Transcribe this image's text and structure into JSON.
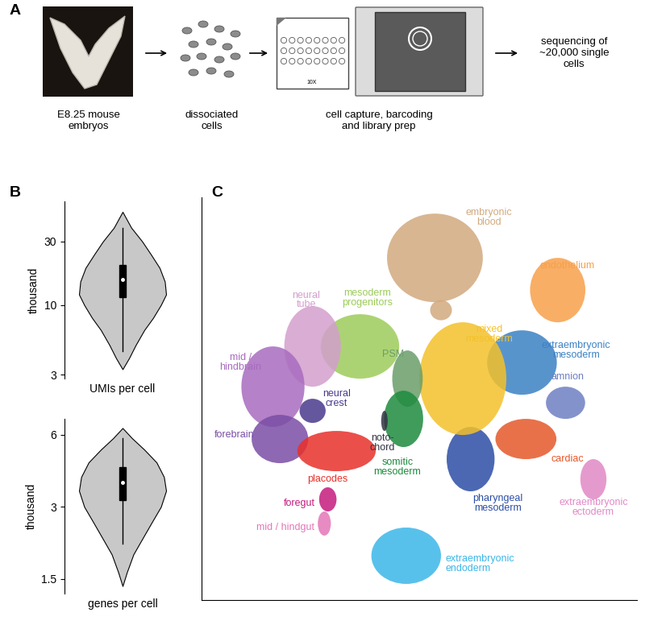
{
  "panel_labels": [
    "A",
    "B",
    "C"
  ],
  "workflow": {
    "steps": [
      "E8.25 mouse\nembryos",
      "dissociated\ncells",
      "cell capture, barcoding\nand library prep",
      "sequencing of\n~20,000 single\ncells"
    ],
    "chip_label": "10X"
  },
  "chart_data": [
    {
      "type": "violin",
      "x_label": "UMIs per cell",
      "y_label": "thousand",
      "log": "y",
      "ylim": [
        2.8,
        60
      ],
      "yticks": [
        3,
        10,
        30
      ],
      "tick_labels": "y",
      "color": "#c8c8c8",
      "y": [
        3.3,
        4,
        5,
        6.5,
        8,
        10,
        12,
        15,
        19,
        24,
        30,
        38,
        50
      ],
      "density": [
        0,
        0.15,
        0.3,
        0.5,
        0.7,
        0.88,
        1.0,
        0.97,
        0.85,
        0.65,
        0.45,
        0.2,
        0
      ],
      "whisker": [
        4.5,
        38
      ],
      "box": [
        11.5,
        20
      ],
      "median": 15.5
    },
    {
      "type": "violin",
      "x_label": "genes per cell",
      "y_label": "thousand",
      "log": "y",
      "ylim": [
        1.3,
        7
      ],
      "yticks": [
        1.5,
        3,
        6
      ],
      "tick_labels": "y",
      "color": "#c8c8c8",
      "y": [
        1.4,
        1.6,
        1.9,
        2.2,
        2.6,
        3.0,
        3.5,
        4.0,
        4.6,
        5.2,
        5.8,
        6.4
      ],
      "density": [
        0,
        0.1,
        0.25,
        0.45,
        0.68,
        0.88,
        1.0,
        0.95,
        0.78,
        0.5,
        0.22,
        0
      ],
      "whisker": [
        2.1,
        5.8
      ],
      "box": [
        3.2,
        4.4
      ],
      "median": 3.8
    },
    {
      "type": "scatter",
      "tick_labels": false,
      "xlim": [
        0,
        100
      ],
      "ylim": [
        0,
        100
      ],
      "xticks": [],
      "yticks": [],
      "clusters": [
        {
          "name": "embryonic\nblood",
          "color": "#d2aa7e",
          "blobs": [
            {
              "center": [
                53.6,
                85
              ],
              "spread": [
                22,
                22
              ]
            },
            {
              "center": [
                55,
                72
              ],
              "spread": [
                5,
                5
              ]
            }
          ]
        },
        {
          "name": "endothelium",
          "color": "#f7a04a",
          "blobs": [
            {
              "center": [
                81.8,
                77
              ],
              "spread": [
                12.7,
                16
              ]
            }
          ]
        },
        {
          "name": "extraembryonic\nmesoderm",
          "color": "#3b82c4",
          "blobs": [
            {
              "center": [
                73.6,
                59
              ],
              "spread": [
                16,
                16
              ]
            }
          ]
        },
        {
          "name": "amnion",
          "color": "#6f7fc4",
          "blobs": [
            {
              "center": [
                83.6,
                49
              ],
              "spread": [
                9,
                8
              ]
            }
          ]
        },
        {
          "name": "cardiac",
          "color": "#e4582a",
          "blobs": [
            {
              "center": [
                74.5,
                40
              ],
              "spread": [
                14,
                10
              ]
            }
          ]
        },
        {
          "name": "extraembryonic\nectoderm",
          "color": "#e189c6",
          "blobs": [
            {
              "center": [
                90,
                30
              ],
              "spread": [
                6,
                10
              ]
            }
          ]
        },
        {
          "name": "pharyngeal\nmesoderm",
          "color": "#2c4ea6",
          "blobs": [
            {
              "center": [
                61.8,
                35
              ],
              "spread": [
                11,
                16
              ]
            }
          ]
        },
        {
          "name": "mixed\nmesoderm",
          "color": "#f4c12a",
          "blobs": [
            {
              "center": [
                60,
                55
              ],
              "spread": [
                20,
                28
              ]
            }
          ]
        },
        {
          "name": "PSM",
          "color": "#6a9e6a",
          "blobs": [
            {
              "center": [
                47.3,
                55
              ],
              "spread": [
                7,
                14
              ]
            }
          ]
        },
        {
          "name": "somitic\nmesoderm",
          "color": "#1e8b3e",
          "blobs": [
            {
              "center": [
                46.4,
                45
              ],
              "spread": [
                9,
                14
              ]
            }
          ]
        },
        {
          "name": "mesoderm\nprogenitors",
          "color": "#9ccc5a",
          "blobs": [
            {
              "center": [
                36.4,
                63
              ],
              "spread": [
                18,
                16
              ]
            }
          ]
        },
        {
          "name": "neural\ntube",
          "color": "#d39fcd",
          "blobs": [
            {
              "center": [
                25.5,
                63
              ],
              "spread": [
                13,
                20
              ]
            }
          ]
        },
        {
          "name": "mid /\nhindbrain",
          "color": "#a86bbf",
          "blobs": [
            {
              "center": [
                16.4,
                53
              ],
              "spread": [
                14.5,
                20
              ]
            }
          ]
        },
        {
          "name": "forebrain",
          "color": "#7a4ea6",
          "blobs": [
            {
              "center": [
                18,
                40
              ],
              "spread": [
                13,
                12
              ]
            }
          ]
        },
        {
          "name": "neural\ncrest",
          "color": "#4a3a8c",
          "blobs": [
            {
              "center": [
                25.5,
                47
              ],
              "spread": [
                6,
                6
              ]
            }
          ]
        },
        {
          "name": "placodes",
          "color": "#e8302a",
          "blobs": [
            {
              "center": [
                31,
                37
              ],
              "spread": [
                18,
                10
              ]
            }
          ]
        },
        {
          "name": "noto-\nchord",
          "color": "#333344",
          "blobs": [
            {
              "center": [
                42,
                44.5
              ],
              "spread": [
                1.5,
                5
              ]
            }
          ]
        },
        {
          "name": "foregut",
          "color": "#c51b7d",
          "blobs": [
            {
              "center": [
                29,
                25
              ],
              "spread": [
                4,
                6
              ]
            }
          ]
        },
        {
          "name": "mid / hindgut",
          "color": "#e377b8",
          "blobs": [
            {
              "center": [
                28.2,
                19
              ],
              "spread": [
                3,
                6
              ]
            }
          ]
        },
        {
          "name": "extraembryonic\nendoderm",
          "color": "#3bb7e8",
          "blobs": [
            {
              "center": [
                47,
                11
              ],
              "spread": [
                16,
                14
              ]
            }
          ]
        }
      ]
    }
  ]
}
